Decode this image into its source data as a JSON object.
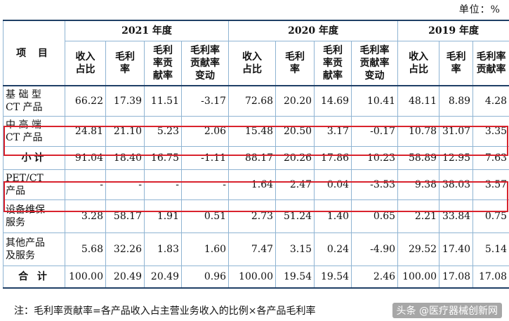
{
  "unit_label": "单位：%",
  "header": {
    "project": "项 目",
    "years": [
      "2021 年度",
      "2020 年度",
      "2019 年度"
    ],
    "cols_2021": [
      "收入\n占比",
      "毛利\n率",
      "毛利\n率贡\n献率",
      "毛利率\n贡献率\n变动"
    ],
    "cols_2020": [
      "收入\n占比",
      "毛利\n率",
      "毛利\n率贡\n献率",
      "毛利率\n贡献率\n变动"
    ],
    "cols_2019": [
      "收入\n占比",
      "毛利\n率",
      "毛利率\n贡献率"
    ]
  },
  "rows": [
    {
      "label": "基 础 型\nCT 产品",
      "values": [
        "66.22",
        "17.39",
        "11.51",
        "-3.17",
        "72.68",
        "20.20",
        "14.69",
        "10.41",
        "48.11",
        "8.89",
        "4.28"
      ]
    },
    {
      "label": "中 高 端\nCT 产品",
      "values": [
        "24.81",
        "21.10",
        "5.23",
        "2.06",
        "15.48",
        "20.50",
        "3.17",
        "-0.17",
        "10.78",
        "31.07",
        "3.35"
      ]
    },
    {
      "label": "小计",
      "values": [
        "91.04",
        "18.40",
        "16.75",
        "-1.11",
        "88.17",
        "20.26",
        "17.86",
        "10.23",
        "58.89",
        "12.95",
        "7.63"
      ]
    },
    {
      "label": "PET/CT\n产品",
      "values": [
        "-",
        "-",
        "-",
        "-",
        "1.64",
        "2.47",
        "0.04",
        "-3.53",
        "9.38",
        "38.03",
        "3.57"
      ]
    },
    {
      "label": "设备维保\n服务",
      "values": [
        "3.28",
        "58.17",
        "1.91",
        "0.51",
        "2.73",
        "51.24",
        "1.40",
        "0.65",
        "2.21",
        "33.84",
        "0.75"
      ]
    },
    {
      "label": "其他产品\n及服务",
      "values": [
        "5.68",
        "32.26",
        "1.83",
        "1.60",
        "7.47",
        "3.15",
        "0.24",
        "-4.90",
        "29.52",
        "17.40",
        "5.14"
      ]
    },
    {
      "label": "合 计",
      "values": [
        "100.00",
        "20.49",
        "20.49",
        "0.96",
        "100.00",
        "19.54",
        "19.54",
        "2.46",
        "100.00",
        "17.08",
        "17.08"
      ]
    }
  ],
  "note": "注：毛利率贡献率=各产品收入占主营业务收入的比例×各产品毛利率",
  "watermark": "头条 @医疗器械创新网",
  "highlight_color": "#d9232d"
}
